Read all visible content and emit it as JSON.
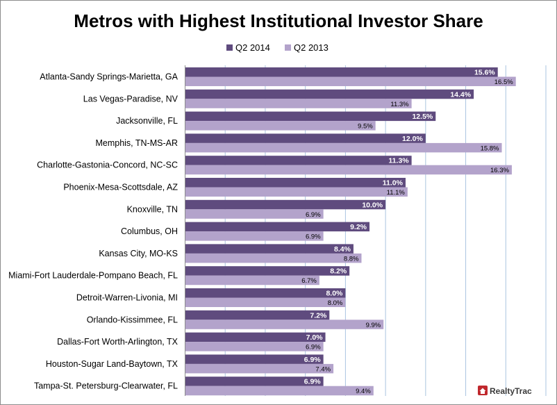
{
  "chart_data": {
    "type": "bar",
    "orientation": "horizontal",
    "title": "Metros with Highest Institutional Investor Share",
    "categories": [
      "Atlanta-Sandy Springs-Marietta, GA",
      "Las Vegas-Paradise, NV",
      "Jacksonville, FL",
      "Memphis, TN-MS-AR",
      "Charlotte-Gastonia-Concord, NC-SC",
      "Phoenix-Mesa-Scottsdale, AZ",
      "Knoxville, TN",
      "Columbus, OH",
      "Kansas City, MO-KS",
      "Miami-Fort Lauderdale-Pompano Beach, FL",
      "Detroit-Warren-Livonia, MI",
      "Orlando-Kissimmee, FL",
      "Dallas-Fort Worth-Arlington, TX",
      "Houston-Sugar Land-Baytown, TX",
      "Tampa-St. Petersburg-Clearwater, FL"
    ],
    "series": [
      {
        "name": "Q2 2014",
        "color": "#5f4b7e",
        "values": [
          15.6,
          14.4,
          12.5,
          12.0,
          11.3,
          11.0,
          10.0,
          9.2,
          8.4,
          8.2,
          8.0,
          7.2,
          7.0,
          6.9,
          6.9
        ],
        "labels": [
          "15.6%",
          "14.4%",
          "12.5%",
          "12.0%",
          "11.3%",
          "11.0%",
          "10.0%",
          "9.2%",
          "8.4%",
          "8.2%",
          "8.0%",
          "7.2%",
          "7.0%",
          "6.9%",
          "6.9%"
        ]
      },
      {
        "name": "Q2 2013",
        "color": "#b3a3cb",
        "values": [
          16.5,
          11.3,
          9.5,
          15.8,
          16.3,
          11.1,
          6.9,
          6.9,
          8.8,
          6.7,
          8.0,
          9.9,
          6.9,
          7.4,
          9.4
        ],
        "labels": [
          "16.5%",
          "11.3%",
          "9.5%",
          "15.8%",
          "16.3%",
          "11.1%",
          "6.9%",
          "6.9%",
          "8.8%",
          "6.7%",
          "8.0%",
          "9.9%",
          "6.9%",
          "7.4%",
          "9.4%"
        ]
      }
    ],
    "xlim": [
      0,
      18
    ],
    "grid": true,
    "grid_color": "#a9c4e0",
    "legend": "top-center",
    "logo": {
      "text": "RealtyTrac",
      "color": "#c0282d"
    }
  }
}
